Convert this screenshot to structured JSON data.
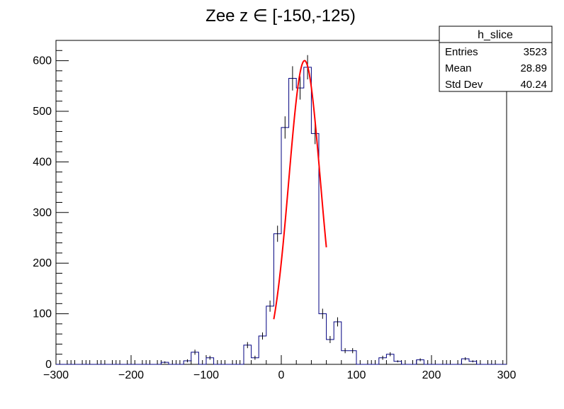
{
  "chart_data": {
    "type": "histogram",
    "title": "Zee z ∈ [-150,-125)",
    "xlabel": "",
    "ylabel": "",
    "xlim": [
      -300,
      300
    ],
    "ylim": [
      0,
      640
    ],
    "bin_width": 10,
    "x_ticks": [
      "−300",
      "−200",
      "−100",
      "0",
      "100",
      "200",
      "300"
    ],
    "x_tick_values": [
      -300,
      -200,
      -100,
      0,
      100,
      200,
      300
    ],
    "y_ticks": [
      "0",
      "100",
      "200",
      "300",
      "400",
      "500",
      "600"
    ],
    "y_tick_values": [
      0,
      100,
      200,
      300,
      400,
      500,
      600
    ],
    "histogram": {
      "name": "h_slice",
      "color": "#000080",
      "bins": [
        {
          "x": -160,
          "y": 4,
          "err": 2
        },
        {
          "x": -130,
          "y": 7,
          "err": 3
        },
        {
          "x": -120,
          "y": 24,
          "err": 5
        },
        {
          "x": -100,
          "y": 13,
          "err": 4
        },
        {
          "x": -50,
          "y": 38,
          "err": 6
        },
        {
          "x": -40,
          "y": 13,
          "err": 4
        },
        {
          "x": -30,
          "y": 56,
          "err": 7
        },
        {
          "x": -20,
          "y": 115,
          "err": 11
        },
        {
          "x": -10,
          "y": 258,
          "err": 16
        },
        {
          "x": 0,
          "y": 468,
          "err": 22
        },
        {
          "x": 10,
          "y": 565,
          "err": 24
        },
        {
          "x": 20,
          "y": 546,
          "err": 23
        },
        {
          "x": 30,
          "y": 587,
          "err": 24
        },
        {
          "x": 40,
          "y": 456,
          "err": 21
        },
        {
          "x": 50,
          "y": 100,
          "err": 10
        },
        {
          "x": 60,
          "y": 49,
          "err": 7
        },
        {
          "x": 70,
          "y": 84,
          "err": 9
        },
        {
          "x": 80,
          "y": 27,
          "err": 5
        },
        {
          "x": 90,
          "y": 27,
          "err": 5
        },
        {
          "x": 130,
          "y": 13,
          "err": 4
        },
        {
          "x": 140,
          "y": 20,
          "err": 4
        },
        {
          "x": 150,
          "y": 6,
          "err": 2
        },
        {
          "x": 180,
          "y": 9,
          "err": 3
        },
        {
          "x": 240,
          "y": 11,
          "err": 3
        },
        {
          "x": 250,
          "y": 6,
          "err": 2
        }
      ]
    },
    "fit": {
      "type": "gaus",
      "color": "#ff0000",
      "constant": 600,
      "mean": 31,
      "sigma": 21,
      "x_range": [
        -10,
        60
      ]
    },
    "stats_box": {
      "title": "h_slice",
      "rows": [
        {
          "label": "Entries",
          "value": "3523"
        },
        {
          "label": "Mean",
          "value": "28.89"
        },
        {
          "label": "Std Dev",
          "value": "40.24"
        }
      ]
    },
    "grid": false,
    "legend_position": "top-right"
  }
}
